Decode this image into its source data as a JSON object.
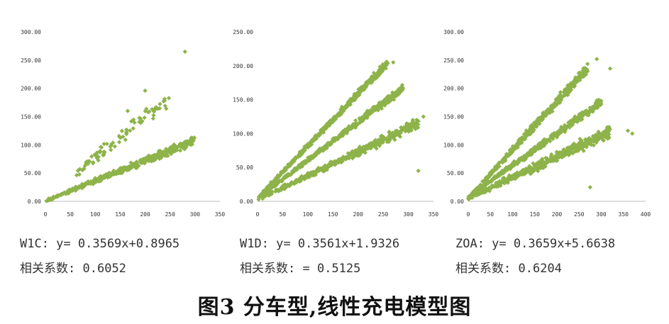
{
  "figure_caption": "图3  分车型,线性充电模型图",
  "chart_data": [
    {
      "type": "scatter",
      "equation": "W1C: y= 0.3569x+0.8965",
      "correlation_label": "相关系数:",
      "correlation_value": "0.6052",
      "x_ticks": [
        "0",
        "50",
        "100",
        "150",
        "200",
        "250",
        "300",
        "350"
      ],
      "y_ticks": [
        "0.00",
        "50.00",
        "100.00",
        "150.00",
        "200.00",
        "250.00",
        "300.00"
      ],
      "xlim": [
        0,
        350
      ],
      "ylim": [
        0,
        300
      ],
      "marker_color": "#8db34a",
      "series": [
        {
          "slope": 0.3569,
          "intercept": 0.8965,
          "x_max": 300,
          "spread": 8
        },
        {
          "slope": 0.72,
          "intercept": 5,
          "x_max": 250,
          "spread": 18,
          "sparse": true
        }
      ],
      "outliers": [
        [
          280,
          265
        ],
        [
          200,
          196
        ],
        [
          165,
          160
        ]
      ]
    },
    {
      "type": "scatter",
      "equation": "W1D: y= 0.3561x+1.9326",
      "correlation_label": "相关系数:",
      "correlation_value": "= 0.5125",
      "x_ticks": [
        "0",
        "50",
        "100",
        "150",
        "200",
        "250",
        "300",
        "350"
      ],
      "y_ticks": [
        "0.00",
        "50.00",
        "100.00",
        "150.00",
        "200.00",
        "250.00"
      ],
      "xlim": [
        0,
        350
      ],
      "ylim": [
        0,
        250
      ],
      "marker_color": "#8db34a",
      "series": [
        {
          "slope": 0.3561,
          "intercept": 1.9326,
          "x_max": 320,
          "spread": 8
        },
        {
          "slope": 0.56,
          "intercept": 5,
          "x_max": 290,
          "spread": 6
        },
        {
          "slope": 0.77,
          "intercept": 5,
          "x_max": 260,
          "spread": 6
        }
      ],
      "outliers": [
        [
          270,
          205
        ],
        [
          330,
          125
        ],
        [
          320,
          45
        ]
      ]
    },
    {
      "type": "scatter",
      "equation": "ZOA: y= 0.3659x+5.6638",
      "correlation_label": "相关系数:",
      "correlation_value": "0.6204",
      "x_ticks": [
        "0",
        "50",
        "100",
        "150",
        "200",
        "250",
        "300",
        "350",
        "400"
      ],
      "y_ticks": [
        "0.00",
        "50.00",
        "100.00",
        "150.00",
        "200.00",
        "250.00",
        "300.00"
      ],
      "xlim": [
        0,
        400
      ],
      "ylim": [
        0,
        300
      ],
      "marker_color": "#8db34a",
      "series": [
        {
          "slope": 0.3659,
          "intercept": 5.6638,
          "x_max": 320,
          "spread": 12
        },
        {
          "slope": 0.56,
          "intercept": 8,
          "x_max": 300,
          "spread": 8
        },
        {
          "slope": 0.86,
          "intercept": 5,
          "x_max": 270,
          "spread": 10
        }
      ],
      "outliers": [
        [
          290,
          252
        ],
        [
          320,
          235
        ],
        [
          275,
          25
        ],
        [
          360,
          125
        ],
        [
          370,
          120
        ]
      ]
    }
  ]
}
